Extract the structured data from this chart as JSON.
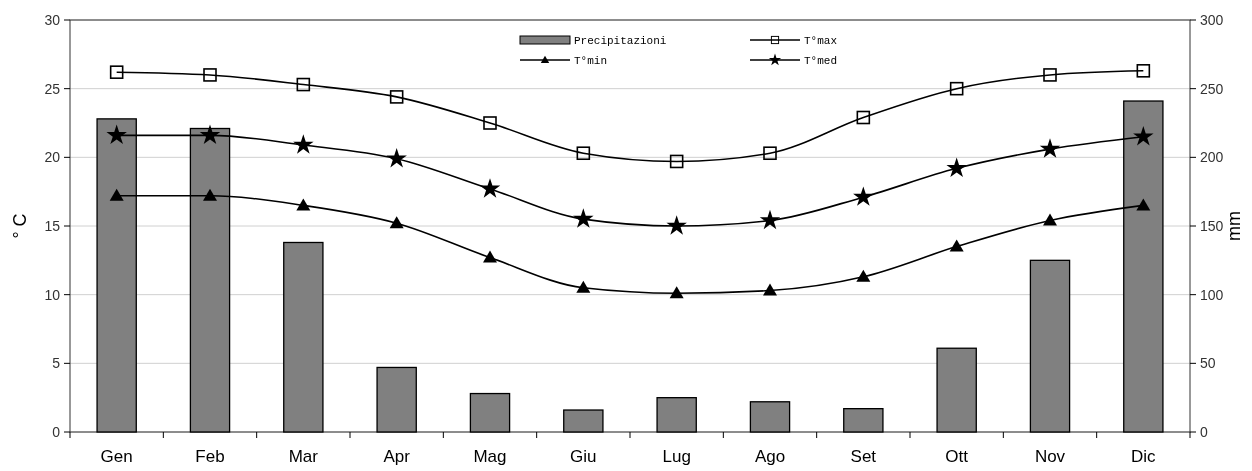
{
  "chart_data": {
    "type": "bar",
    "ylabel": "° C",
    "y2label": "mm",
    "categories": [
      "Gen",
      "Feb",
      "Mar",
      "Apr",
      "Mag",
      "Giu",
      "Lug",
      "Ago",
      "Set",
      "Ott",
      "Nov",
      "Dic"
    ],
    "series": [
      {
        "name": "Precipitazioni",
        "axis": "y2",
        "color": "#808080",
        "values": [
          228,
          221,
          138,
          47,
          28,
          16,
          25,
          22,
          17,
          61,
          125,
          241
        ]
      },
      {
        "name": "T°min",
        "type": "line",
        "marker": "triangle",
        "color": "#000000",
        "values": [
          17.2,
          17.2,
          16.5,
          15.2,
          12.7,
          10.5,
          10.1,
          10.3,
          11.3,
          13.5,
          15.4,
          16.5
        ]
      },
      {
        "name": "T°max",
        "type": "line",
        "marker": "square",
        "color": "#000000",
        "values": [
          26.2,
          26.0,
          25.3,
          24.4,
          22.5,
          20.3,
          19.7,
          20.3,
          22.9,
          25.0,
          26.0,
          26.3
        ]
      },
      {
        "name": "T°med",
        "type": "line",
        "marker": "star",
        "color": "#000000",
        "values": [
          21.6,
          21.6,
          20.9,
          19.9,
          17.7,
          15.5,
          15.0,
          15.4,
          17.1,
          19.2,
          20.6,
          21.5
        ]
      }
    ],
    "ylim": [
      0,
      30
    ],
    "yticks": [
      0,
      5,
      10,
      15,
      20,
      25,
      30
    ],
    "y2lim": [
      0,
      300
    ],
    "y2ticks": [
      0,
      50,
      100,
      150,
      200,
      250,
      300
    ],
    "grid": "y",
    "legend": "top"
  }
}
